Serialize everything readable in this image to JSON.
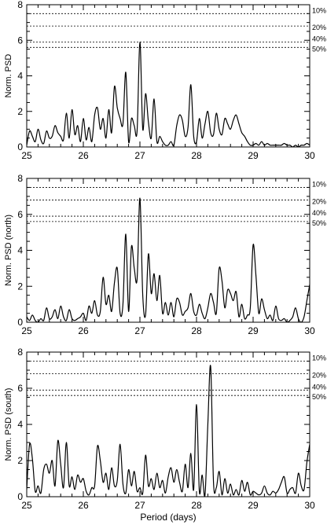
{
  "chart_data": [
    {
      "type": "line",
      "ylabel": "Norm. PSD",
      "xlabel": "",
      "xlim": [
        25,
        30
      ],
      "ylim": [
        0,
        8
      ],
      "xticks": [
        25,
        26,
        27,
        28,
        29,
        30
      ],
      "yticks": [
        0,
        2,
        4,
        6,
        8
      ],
      "significance_levels": [
        {
          "label": "10%",
          "value": 7.5
        },
        {
          "label": "20%",
          "value": 6.8
        },
        {
          "label": "40%",
          "value": 5.9
        },
        {
          "label": "50%",
          "value": 5.6
        }
      ],
      "series": [
        {
          "x": [
            25.0,
            25.05,
            25.1,
            25.15,
            25.2,
            25.25,
            25.3,
            25.35,
            25.4,
            25.45,
            25.5,
            25.55,
            25.6,
            25.65,
            25.7,
            25.75,
            25.8,
            25.85,
            25.9,
            25.95,
            26.0,
            26.05,
            26.1,
            26.15,
            26.2,
            26.25,
            26.3,
            26.35,
            26.4,
            26.45,
            26.5,
            26.55,
            26.6,
            26.65,
            26.7,
            26.75,
            26.8,
            26.85,
            26.9,
            26.95,
            27.0,
            27.05,
            27.1,
            27.15,
            27.2,
            27.25,
            27.3,
            27.35,
            27.4,
            27.45,
            27.5,
            27.55,
            27.6,
            27.65,
            27.7,
            27.75,
            27.8,
            27.85,
            27.9,
            27.95,
            28.0,
            28.05,
            28.1,
            28.15,
            28.2,
            28.25,
            28.3,
            28.35,
            28.4,
            28.45,
            28.5,
            28.55,
            28.6,
            28.65,
            28.7,
            28.75,
            28.8,
            28.85,
            28.9,
            28.95,
            29.0,
            29.05,
            29.1,
            29.15,
            29.2,
            29.25,
            29.3,
            29.35,
            29.4,
            29.45,
            29.5,
            29.55,
            29.6,
            29.65,
            29.7,
            29.75,
            29.8,
            29.85,
            29.9,
            29.95,
            30.0
          ],
          "y": [
            0.1,
            0.9,
            0.6,
            0.3,
            1.0,
            0.4,
            0.2,
            0.9,
            0.5,
            0.6,
            1.2,
            0.8,
            0.6,
            0.4,
            1.9,
            0.5,
            2.1,
            0.7,
            1.2,
            0.3,
            1.6,
            0.4,
            1.1,
            0.3,
            1.8,
            2.2,
            1.0,
            1.6,
            0.5,
            2.1,
            0.8,
            3.4,
            2.2,
            1.6,
            1.3,
            4.2,
            0.3,
            1.6,
            1.2,
            0.9,
            5.9,
            1.0,
            3.0,
            1.4,
            0.5,
            2.7,
            0.3,
            0.6,
            0.3,
            0.1,
            0.1,
            0.3,
            0.1,
            1.2,
            1.8,
            1.5,
            0.6,
            1.1,
            3.5,
            0.6,
            0.3,
            1.6,
            0.5,
            1.3,
            2.0,
            0.8,
            0.7,
            1.9,
            1.0,
            0.7,
            1.6,
            1.3,
            1.0,
            1.5,
            1.8,
            1.3,
            0.8,
            0.6,
            0.3,
            0.1,
            0.1,
            0.2,
            0.1,
            0.3,
            0.1,
            0.2,
            0.1,
            0.1,
            0.1,
            0.1,
            0.1,
            0.2,
            0.1,
            0.1,
            0.0,
            0.1,
            0.0,
            0.1,
            0.1,
            0.2,
            0.1
          ]
        }
      ]
    },
    {
      "type": "line",
      "ylabel": "Norm. PSD (north)",
      "xlabel": "",
      "xlim": [
        25,
        30
      ],
      "ylim": [
        0,
        8
      ],
      "xticks": [
        25,
        26,
        27,
        28,
        29,
        30
      ],
      "yticks": [
        0,
        2,
        4,
        6,
        8
      ],
      "significance_levels": [
        {
          "label": "10%",
          "value": 7.5
        },
        {
          "label": "20%",
          "value": 6.8
        },
        {
          "label": "40%",
          "value": 5.9
        },
        {
          "label": "50%",
          "value": 5.6
        }
      ],
      "series": [
        {
          "x": [
            25.0,
            25.05,
            25.1,
            25.15,
            25.2,
            25.25,
            25.3,
            25.35,
            25.4,
            25.45,
            25.5,
            25.55,
            25.6,
            25.65,
            25.7,
            25.75,
            25.8,
            25.85,
            25.9,
            25.95,
            26.0,
            26.05,
            26.1,
            26.15,
            26.2,
            26.25,
            26.3,
            26.35,
            26.4,
            26.45,
            26.5,
            26.55,
            26.6,
            26.65,
            26.7,
            26.75,
            26.8,
            26.85,
            26.9,
            26.95,
            27.0,
            27.05,
            27.1,
            27.15,
            27.2,
            27.25,
            27.3,
            27.35,
            27.4,
            27.45,
            27.5,
            27.55,
            27.6,
            27.65,
            27.7,
            27.75,
            27.8,
            27.85,
            27.9,
            27.95,
            28.0,
            28.05,
            28.1,
            28.15,
            28.2,
            28.25,
            28.3,
            28.35,
            28.4,
            28.45,
            28.5,
            28.55,
            28.6,
            28.65,
            28.7,
            28.75,
            28.8,
            28.85,
            28.9,
            28.95,
            29.0,
            29.05,
            29.1,
            29.15,
            29.2,
            29.25,
            29.3,
            29.35,
            29.4,
            29.45,
            29.5,
            29.55,
            29.6,
            29.65,
            29.7,
            29.75,
            29.8,
            29.85,
            29.9,
            29.95,
            30.0
          ],
          "y": [
            0.3,
            0.1,
            0.4,
            0.1,
            0.0,
            0.2,
            0.1,
            0.8,
            0.2,
            0.3,
            0.7,
            0.2,
            0.9,
            0.3,
            0.1,
            0.7,
            0.2,
            0.1,
            0.2,
            0.3,
            0.5,
            0.1,
            0.9,
            0.5,
            1.2,
            0.4,
            0.6,
            2.5,
            1.0,
            1.5,
            0.6,
            2.2,
            3.0,
            0.5,
            1.0,
            4.9,
            0.6,
            4.2,
            3.0,
            2.4,
            6.9,
            1.5,
            0.4,
            3.8,
            1.6,
            2.7,
            1.2,
            2.6,
            0.5,
            1.1,
            0.4,
            1.1,
            0.3,
            1.3,
            1.1,
            0.4,
            0.6,
            0.8,
            1.6,
            0.6,
            0.4,
            1.0,
            0.5,
            0.2,
            0.8,
            1.6,
            1.1,
            0.5,
            3.0,
            2.3,
            0.8,
            1.8,
            1.6,
            1.2,
            1.7,
            0.3,
            1.0,
            0.2,
            0.4,
            0.8,
            4.3,
            2.6,
            0.5,
            1.3,
            0.7,
            0.2,
            0.4,
            0.1,
            0.9,
            0.2,
            0.1,
            0.2,
            0.0,
            0.1,
            0.3,
            0.8,
            0.2,
            0.0,
            0.3,
            1.2,
            2.1
          ]
        }
      ]
    },
    {
      "type": "line",
      "ylabel": "Norm. PSD (south)",
      "xlabel": "Period (days)",
      "xlim": [
        25,
        30
      ],
      "ylim": [
        0,
        8
      ],
      "xticks": [
        25,
        26,
        27,
        28,
        29,
        30
      ],
      "yticks": [
        0,
        2,
        4,
        6,
        8
      ],
      "significance_levels": [
        {
          "label": "10%",
          "value": 7.5
        },
        {
          "label": "20%",
          "value": 6.8
        },
        {
          "label": "40%",
          "value": 5.9
        },
        {
          "label": "50%",
          "value": 5.6
        }
      ],
      "series": [
        {
          "x": [
            25.0,
            25.05,
            25.1,
            25.15,
            25.2,
            25.25,
            25.3,
            25.35,
            25.4,
            25.45,
            25.5,
            25.55,
            25.6,
            25.65,
            25.7,
            25.75,
            25.8,
            25.85,
            25.9,
            25.95,
            26.0,
            26.05,
            26.1,
            26.15,
            26.2,
            26.25,
            26.3,
            26.35,
            26.4,
            26.45,
            26.5,
            26.55,
            26.6,
            26.65,
            26.7,
            26.75,
            26.8,
            26.85,
            26.9,
            26.95,
            27.0,
            27.05,
            27.1,
            27.15,
            27.2,
            27.25,
            27.3,
            27.35,
            27.4,
            27.45,
            27.5,
            27.55,
            27.6,
            27.65,
            27.7,
            27.75,
            27.8,
            27.85,
            27.9,
            27.95,
            28.0,
            28.05,
            28.1,
            28.15,
            28.2,
            28.25,
            28.3,
            28.35,
            28.4,
            28.45,
            28.5,
            28.55,
            28.6,
            28.65,
            28.7,
            28.75,
            28.8,
            28.85,
            28.9,
            28.95,
            29.0,
            29.05,
            29.1,
            29.15,
            29.2,
            29.25,
            29.3,
            29.35,
            29.4,
            29.45,
            29.5,
            29.55,
            29.6,
            29.65,
            29.7,
            29.75,
            29.8,
            29.85,
            29.9,
            29.95,
            30.0
          ],
          "y": [
            0.4,
            2.9,
            2.1,
            0.3,
            0.6,
            0.2,
            1.5,
            1.8,
            1.3,
            2.0,
            0.6,
            3.1,
            1.8,
            0.5,
            3.0,
            0.6,
            1.1,
            0.4,
            1.2,
            0.8,
            1.0,
            0.3,
            0.1,
            0.5,
            0.6,
            2.8,
            2.0,
            0.8,
            1.3,
            0.4,
            1.6,
            0.6,
            0.9,
            2.9,
            0.7,
            0.2,
            1.5,
            0.6,
            1.4,
            0.3,
            0.5,
            0.2,
            2.3,
            0.6,
            1.0,
            0.4,
            1.3,
            0.5,
            0.9,
            0.2,
            1.1,
            1.6,
            0.8,
            1.5,
            0.8,
            0.3,
            1.8,
            0.5,
            2.4,
            0.4,
            5.1,
            0.3,
            1.2,
            0.1,
            4.0,
            7.2,
            0.8,
            0.5,
            1.4,
            0.1,
            1.0,
            0.2,
            0.7,
            0.1,
            0.4,
            0.1,
            0.9,
            0.3,
            0.8,
            0.1,
            0.3,
            0.2,
            0.1,
            0.2,
            0.6,
            0.2,
            0.1,
            0.3,
            0.2,
            0.4,
            0.8,
            1.1,
            0.2,
            0.4,
            0.5,
            0.2,
            1.3,
            0.6,
            0.4,
            1.9,
            2.9
          ]
        }
      ]
    }
  ]
}
